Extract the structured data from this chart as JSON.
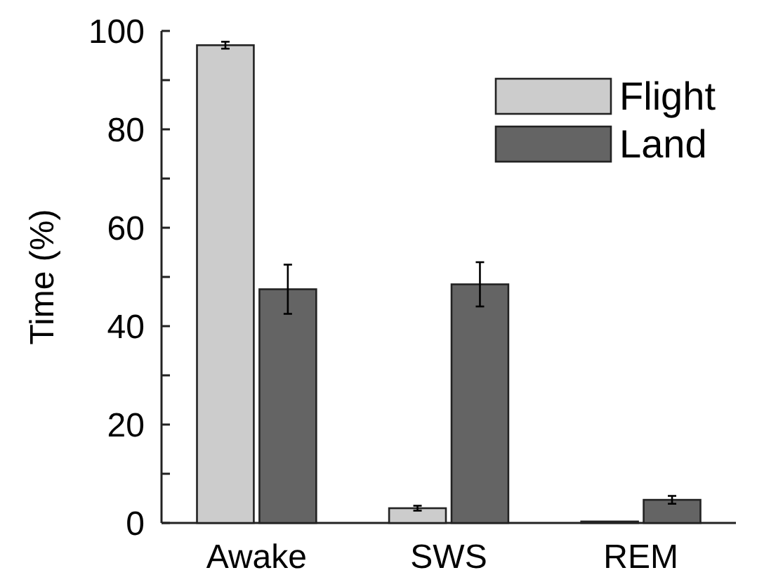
{
  "chart_data": {
    "type": "bar",
    "ylabel": "Time (%)",
    "categories": [
      "Awake",
      "SWS",
      "REM"
    ],
    "series": [
      {
        "name": "Flight",
        "color": "#cccccc",
        "values": [
          97.1,
          3.0,
          0.3
        ],
        "errors": [
          0.7,
          0.5,
          null
        ]
      },
      {
        "name": "Land",
        "color": "#646464",
        "values": [
          47.5,
          48.5,
          4.7
        ],
        "errors": [
          5,
          4.5,
          0.8
        ]
      }
    ],
    "ylim": [
      0,
      100
    ],
    "yticks": [
      0,
      {
        "value": 10,
        "label": null
      },
      20,
      {
        "value": 30,
        "label": null
      },
      40,
      {
        "value": 50,
        "label": null
      },
      60,
      {
        "value": 70,
        "label": null
      },
      80,
      {
        "value": 90,
        "label": null
      },
      100
    ],
    "grid": false,
    "legend": "top right"
  }
}
